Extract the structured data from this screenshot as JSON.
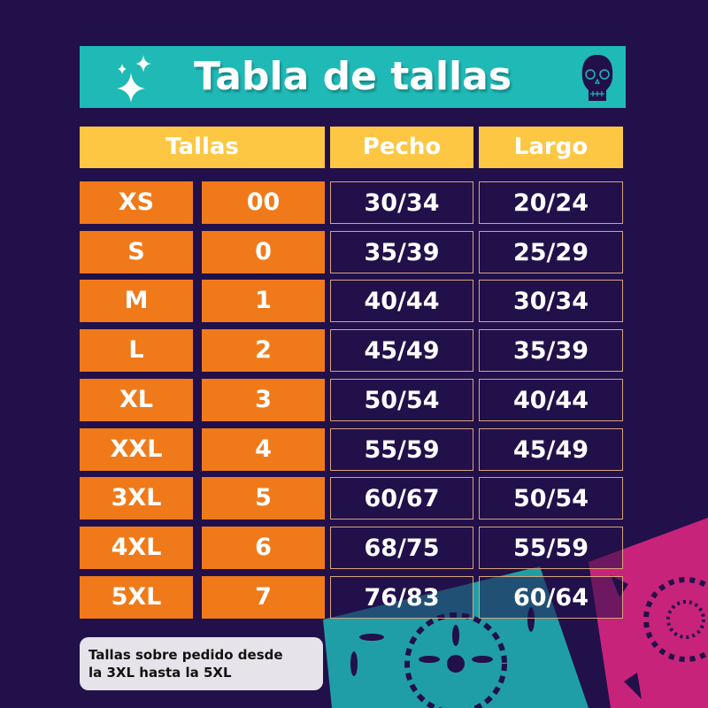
{
  "title": "Tabla de tallas",
  "headers": {
    "tallas": "Tallas",
    "pecho": "Pecho",
    "largo": "Largo"
  },
  "rows": [
    {
      "size": "XS",
      "num": "00",
      "pecho": "30/34",
      "largo": "20/24"
    },
    {
      "size": "S",
      "num": "0",
      "pecho": "35/39",
      "largo": "25/29"
    },
    {
      "size": "M",
      "num": "1",
      "pecho": "40/44",
      "largo": "30/34"
    },
    {
      "size": "L",
      "num": "2",
      "pecho": "45/49",
      "largo": "35/39"
    },
    {
      "size": "XL",
      "num": "3",
      "pecho": "50/54",
      "largo": "40/44"
    },
    {
      "size": "XXL",
      "num": "4",
      "pecho": "55/59",
      "largo": "45/49"
    },
    {
      "size": "3XL",
      "num": "5",
      "pecho": "60/67",
      "largo": "50/54"
    },
    {
      "size": "4XL",
      "num": "6",
      "pecho": "68/75",
      "largo": "55/59"
    },
    {
      "size": "5XL",
      "num": "7",
      "pecho": "76/83",
      "largo": "60/64"
    }
  ],
  "note": {
    "line1": "Tallas sobre pedido desde",
    "line2": "la 3XL hasta la 5XL"
  },
  "icons": {
    "sparkles": "sparkles-icon",
    "skull": "sugar-skull-icon",
    "decoration": "papel-picado"
  },
  "colors": {
    "background": "#22104a",
    "title_bar": "#1fb9b6",
    "header": "#fdc743",
    "size_cell": "#f07a1a",
    "accent_pink": "#c8237a"
  }
}
